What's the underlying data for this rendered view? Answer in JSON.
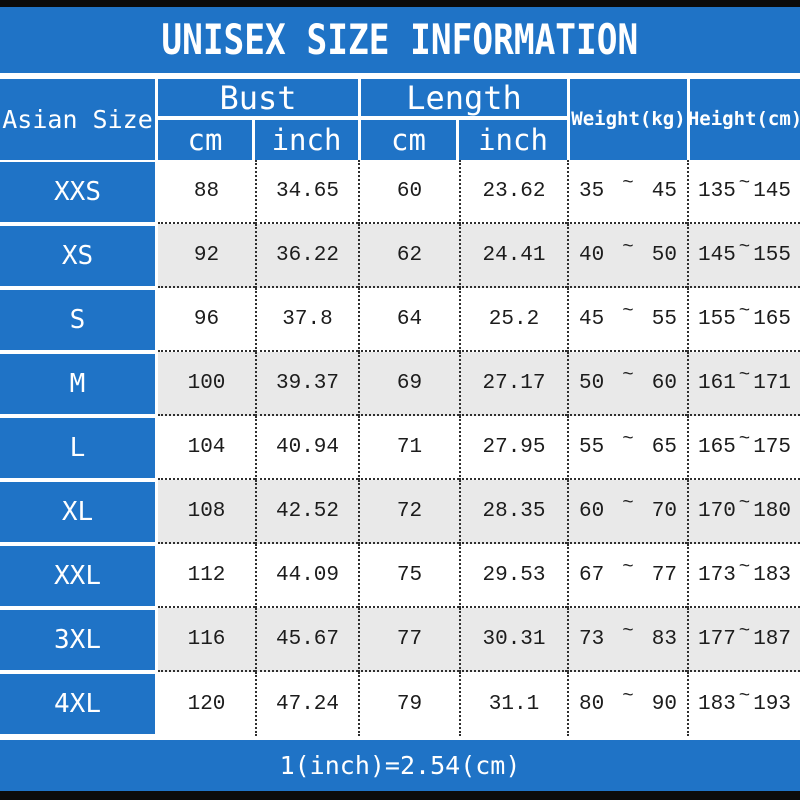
{
  "title": "UNISEX SIZE INFORMATION",
  "colors": {
    "accent_blue": "#1f73c6",
    "row_alt": "#e9e9e9",
    "bar_black": "#0b0b0b",
    "grid_dot": "#2f2f2f",
    "header_text": "#ffffff",
    "cell_text": "#1c1c1c"
  },
  "table": {
    "corner_label": "Asian Size",
    "groups": [
      {
        "label": "Bust",
        "subs": [
          "cm",
          "inch"
        ]
      },
      {
        "label": "Length",
        "subs": [
          "cm",
          "inch"
        ]
      }
    ],
    "single_headers": [
      "Weight(kg)",
      "Height(cm)"
    ],
    "tilde": "~",
    "rows": [
      {
        "size": "XXS",
        "bust_cm": 88,
        "bust_inch": 34.65,
        "length_cm": 60,
        "length_inch": 23.62,
        "weight_min": 35,
        "weight_max": 45,
        "height_min": 135,
        "height_max": 145
      },
      {
        "size": "XS",
        "bust_cm": 92,
        "bust_inch": 36.22,
        "length_cm": 62,
        "length_inch": 24.41,
        "weight_min": 40,
        "weight_max": 50,
        "height_min": 145,
        "height_max": 155
      },
      {
        "size": "S",
        "bust_cm": 96,
        "bust_inch": 37.8,
        "length_cm": 64,
        "length_inch": 25.2,
        "weight_min": 45,
        "weight_max": 55,
        "height_min": 155,
        "height_max": 165
      },
      {
        "size": "M",
        "bust_cm": 100,
        "bust_inch": 39.37,
        "length_cm": 69,
        "length_inch": 27.17,
        "weight_min": 50,
        "weight_max": 60,
        "height_min": 161,
        "height_max": 171
      },
      {
        "size": "L",
        "bust_cm": 104,
        "bust_inch": 40.94,
        "length_cm": 71,
        "length_inch": 27.95,
        "weight_min": 55,
        "weight_max": 65,
        "height_min": 165,
        "height_max": 175
      },
      {
        "size": "XL",
        "bust_cm": 108,
        "bust_inch": 42.52,
        "length_cm": 72,
        "length_inch": 28.35,
        "weight_min": 60,
        "weight_max": 70,
        "height_min": 170,
        "height_max": 180
      },
      {
        "size": "XXL",
        "bust_cm": 112,
        "bust_inch": 44.09,
        "length_cm": 75,
        "length_inch": 29.53,
        "weight_min": 67,
        "weight_max": 77,
        "height_min": 173,
        "height_max": 183
      },
      {
        "size": "3XL",
        "bust_cm": 116,
        "bust_inch": 45.67,
        "length_cm": 77,
        "length_inch": 30.31,
        "weight_min": 73,
        "weight_max": 83,
        "height_min": 177,
        "height_max": 187
      },
      {
        "size": "4XL",
        "bust_cm": 120,
        "bust_inch": 47.24,
        "length_cm": 79,
        "length_inch": 31.1,
        "weight_min": 80,
        "weight_max": 90,
        "height_min": 183,
        "height_max": 193
      }
    ]
  },
  "footer": {
    "note": "1(inch)=2.54(cm)"
  },
  "chart_data": {
    "type": "table",
    "title": "UNISEX SIZE INFORMATION",
    "columns": [
      "Asian Size",
      "Bust cm",
      "Bust inch",
      "Length cm",
      "Length inch",
      "Weight(kg)",
      "Height(cm)"
    ],
    "rows": [
      [
        "XXS",
        "88",
        "34.65",
        "60",
        "23.62",
        "35~45",
        "135~145"
      ],
      [
        "XS",
        "92",
        "36.22",
        "62",
        "24.41",
        "40~50",
        "145~155"
      ],
      [
        "S",
        "96",
        "37.8",
        "64",
        "25.2",
        "45~55",
        "155~165"
      ],
      [
        "M",
        "100",
        "39.37",
        "69",
        "27.17",
        "50~60",
        "161~171"
      ],
      [
        "L",
        "104",
        "40.94",
        "71",
        "27.95",
        "55~65",
        "165~175"
      ],
      [
        "XL",
        "108",
        "42.52",
        "72",
        "28.35",
        "60~70",
        "170~180"
      ],
      [
        "XXL",
        "112",
        "44.09",
        "75",
        "29.53",
        "67~77",
        "173~183"
      ],
      [
        "3XL",
        "116",
        "45.67",
        "77",
        "30.31",
        "73~83",
        "177~187"
      ],
      [
        "4XL",
        "120",
        "47.24",
        "79",
        "31.1",
        "80~90",
        "183~193"
      ]
    ],
    "note": "1(inch)=2.54(cm)"
  }
}
